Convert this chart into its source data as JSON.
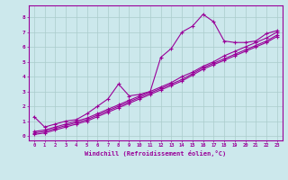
{
  "xlabel": "Windchill (Refroidissement éolien,°C)",
  "bg_color": "#cce8ec",
  "grid_color": "#aacccc",
  "line_color": "#990099",
  "xlim": [
    -0.5,
    23.5
  ],
  "ylim": [
    -0.3,
    8.8
  ],
  "xticks": [
    0,
    1,
    2,
    3,
    4,
    5,
    6,
    7,
    8,
    9,
    10,
    11,
    12,
    13,
    14,
    15,
    16,
    17,
    18,
    19,
    20,
    21,
    22,
    23
  ],
  "yticks": [
    0,
    1,
    2,
    3,
    4,
    5,
    6,
    7,
    8
  ],
  "series1_x": [
    0,
    1,
    2,
    3,
    4,
    5,
    6,
    7,
    8,
    9,
    10,
    11,
    12,
    13,
    14,
    15,
    16,
    17,
    18,
    19,
    20,
    21,
    22,
    23
  ],
  "series1_y": [
    1.3,
    0.6,
    0.8,
    1.0,
    1.1,
    1.5,
    2.0,
    2.5,
    3.5,
    2.7,
    2.8,
    3.0,
    5.3,
    5.9,
    7.0,
    7.4,
    8.2,
    7.7,
    6.4,
    6.3,
    6.3,
    6.4,
    6.9,
    7.1
  ],
  "series2_x": [
    0,
    1,
    2,
    3,
    4,
    5,
    6,
    7,
    8,
    9,
    10,
    11,
    12,
    13,
    14,
    15,
    16,
    17,
    18,
    19,
    20,
    21,
    22,
    23
  ],
  "series2_y": [
    0.3,
    0.4,
    0.6,
    0.8,
    1.0,
    1.2,
    1.5,
    1.8,
    2.1,
    2.4,
    2.7,
    3.0,
    3.3,
    3.6,
    4.0,
    4.3,
    4.7,
    5.0,
    5.4,
    5.7,
    6.0,
    6.3,
    6.6,
    7.0
  ],
  "series3_x": [
    0,
    1,
    2,
    3,
    4,
    5,
    6,
    7,
    8,
    9,
    10,
    11,
    12,
    13,
    14,
    15,
    16,
    17,
    18,
    19,
    20,
    21,
    22,
    23
  ],
  "series3_y": [
    0.2,
    0.3,
    0.5,
    0.7,
    0.9,
    1.1,
    1.4,
    1.7,
    2.0,
    2.3,
    2.6,
    2.9,
    3.2,
    3.5,
    3.8,
    4.2,
    4.6,
    4.9,
    5.2,
    5.5,
    5.8,
    6.1,
    6.4,
    6.8
  ],
  "series4_x": [
    0,
    1,
    2,
    3,
    4,
    5,
    6,
    7,
    8,
    9,
    10,
    11,
    12,
    13,
    14,
    15,
    16,
    17,
    18,
    19,
    20,
    21,
    22,
    23
  ],
  "series4_y": [
    0.1,
    0.2,
    0.4,
    0.6,
    0.8,
    1.0,
    1.3,
    1.6,
    1.9,
    2.2,
    2.5,
    2.8,
    3.1,
    3.4,
    3.7,
    4.1,
    4.5,
    4.8,
    5.1,
    5.4,
    5.7,
    6.0,
    6.3,
    6.7
  ]
}
